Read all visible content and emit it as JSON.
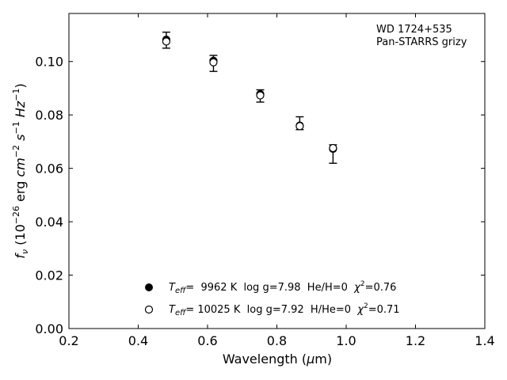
{
  "chart_data": {
    "type": "scatter",
    "title": "",
    "xlabel": "Wavelength (μm)",
    "ylabel": "f_ν (10^-26 erg cm^-2 s^-1 Hz^-1)",
    "xlim": [
      0.2,
      1.4
    ],
    "ylim": [
      0.0,
      0.118
    ],
    "xticks": [
      "0.2",
      "0.4",
      "0.6",
      "0.8",
      "1.0",
      "1.2",
      "1.4"
    ],
    "yticks": [
      "0.00",
      "0.02",
      "0.04",
      "0.06",
      "0.08",
      "0.10"
    ],
    "grid": false,
    "annotation": [
      "WD 1724+535",
      "Pan-STARRS grizy"
    ],
    "observed": {
      "points": [
        {
          "x": 0.481,
          "y": 0.108,
          "yerr_low": 0.003,
          "yerr_high": 0.003
        },
        {
          "x": 0.617,
          "y": 0.0993,
          "yerr_low": 0.003,
          "yerr_high": 0.003
        },
        {
          "x": 0.752,
          "y": 0.0871,
          "yerr_low": 0.0023,
          "yerr_high": 0.0023
        },
        {
          "x": 0.866,
          "y": 0.0763,
          "yerr_low": 0.0018,
          "yerr_high": 0.003
        },
        {
          "x": 0.962,
          "y": 0.0675,
          "yerr_low": 0.0056,
          "yerr_high": 0.0013
        }
      ]
    },
    "series": [
      {
        "marker": "filled",
        "x": [
          0.481,
          0.617,
          0.752,
          0.866,
          0.962
        ],
        "y": [
          0.1082,
          0.1003,
          0.0878,
          0.076,
          0.0673
        ]
      },
      {
        "marker": "open",
        "x": [
          0.481,
          0.617,
          0.752,
          0.866,
          0.962
        ],
        "y": [
          0.1075,
          0.0997,
          0.0873,
          0.0758,
          0.0676
        ]
      }
    ],
    "legend": {
      "placement": "lower-center",
      "entries": [
        {
          "marker": "filled",
          "label": "T_eff=  9962 K  log g=7.98  He/H=0  χ²=0.76"
        },
        {
          "marker": "open",
          "label": "T_eff= 10025 K  log g=7.92  H/He=0  χ²=0.71"
        }
      ]
    }
  }
}
